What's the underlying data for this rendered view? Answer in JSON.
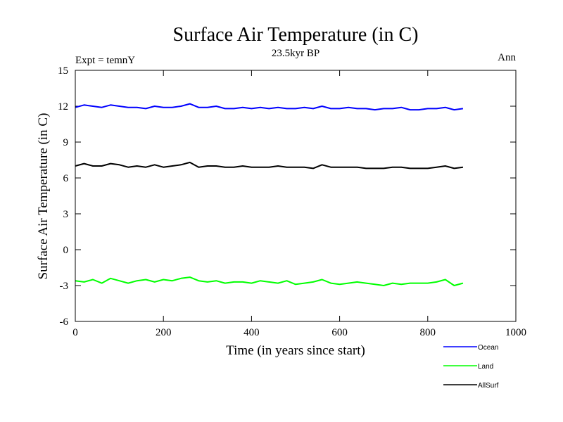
{
  "chart_data": {
    "type": "line",
    "title": "Surface Air Temperature (in C)",
    "subtitle": "23.5kyr BP",
    "experiment_label": "Expt = temnY",
    "season_label": "Ann",
    "xlabel": "Time (in years since start)",
    "ylabel": "Surface Air Temperature (in C)",
    "xlim": [
      0,
      1000
    ],
    "ylim": [
      -6,
      15
    ],
    "xticks": [
      0,
      200,
      400,
      600,
      800,
      1000
    ],
    "yticks": [
      -6,
      -3,
      0,
      3,
      6,
      9,
      12,
      15
    ],
    "grid": false,
    "legend_position": "bottom-right",
    "x": [
      0,
      20,
      40,
      60,
      80,
      100,
      120,
      140,
      160,
      180,
      200,
      220,
      240,
      260,
      280,
      300,
      320,
      340,
      360,
      380,
      400,
      420,
      440,
      460,
      480,
      500,
      520,
      540,
      560,
      580,
      600,
      620,
      640,
      660,
      680,
      700,
      720,
      740,
      760,
      780,
      800,
      820,
      840,
      860,
      880
    ],
    "series": [
      {
        "name": "Ocean",
        "color": "#0000ff",
        "values": [
          11.9,
          12.1,
          12.0,
          11.9,
          12.1,
          12.0,
          11.9,
          11.9,
          11.8,
          12.0,
          11.9,
          11.9,
          12.0,
          12.2,
          11.9,
          11.9,
          12.0,
          11.8,
          11.8,
          11.9,
          11.8,
          11.9,
          11.8,
          11.9,
          11.8,
          11.8,
          11.9,
          11.8,
          12.0,
          11.8,
          11.8,
          11.9,
          11.8,
          11.8,
          11.7,
          11.8,
          11.8,
          11.9,
          11.7,
          11.7,
          11.8,
          11.8,
          11.9,
          11.7,
          11.8
        ]
      },
      {
        "name": "Land",
        "color": "#00ff00",
        "values": [
          -2.6,
          -2.7,
          -2.5,
          -2.8,
          -2.4,
          -2.6,
          -2.8,
          -2.6,
          -2.5,
          -2.7,
          -2.5,
          -2.6,
          -2.4,
          -2.3,
          -2.6,
          -2.7,
          -2.6,
          -2.8,
          -2.7,
          -2.7,
          -2.8,
          -2.6,
          -2.7,
          -2.8,
          -2.6,
          -2.9,
          -2.8,
          -2.7,
          -2.5,
          -2.8,
          -2.9,
          -2.8,
          -2.7,
          -2.8,
          -2.9,
          -3.0,
          -2.8,
          -2.9,
          -2.8,
          -2.8,
          -2.8,
          -2.7,
          -2.5,
          -3.0,
          -2.8
        ]
      },
      {
        "name": "AllSurf",
        "color": "#000000",
        "values": [
          7.0,
          7.2,
          7.0,
          7.0,
          7.2,
          7.1,
          6.9,
          7.0,
          6.9,
          7.1,
          6.9,
          7.0,
          7.1,
          7.3,
          6.9,
          7.0,
          7.0,
          6.9,
          6.9,
          7.0,
          6.9,
          6.9,
          6.9,
          7.0,
          6.9,
          6.9,
          6.9,
          6.8,
          7.1,
          6.9,
          6.9,
          6.9,
          6.9,
          6.8,
          6.8,
          6.8,
          6.9,
          6.9,
          6.8,
          6.8,
          6.8,
          6.9,
          7.0,
          6.8,
          6.9
        ]
      }
    ]
  }
}
